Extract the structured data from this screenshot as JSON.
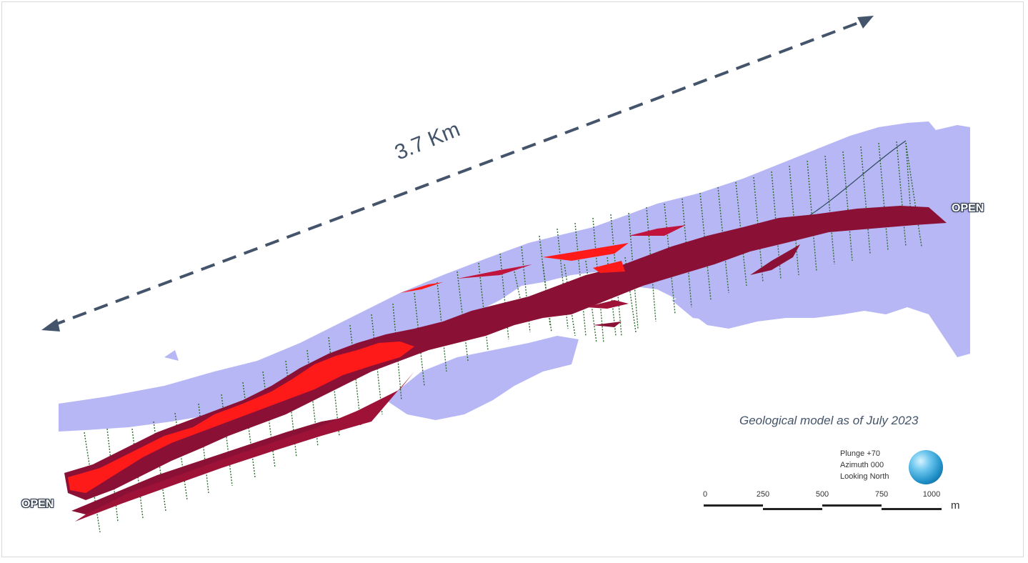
{
  "distance_label": "3.7 Km",
  "open_left": "OPEN",
  "open_right": "OPEN",
  "caption": "Geological model as of July 2023",
  "view": {
    "plunge": "Plunge +70",
    "azimuth": "Azimuth 000",
    "looking": "Looking North"
  },
  "scale_bar": {
    "ticks": [
      "0",
      "250",
      "500",
      "750",
      "1000"
    ],
    "unit": "m"
  },
  "colors": {
    "arrow": "#44546a",
    "ground": "#b7b7f5",
    "ore_bright": "#ff1a1a",
    "ore_dark": "#8b1035",
    "drillhole": "#2d6b2d"
  }
}
